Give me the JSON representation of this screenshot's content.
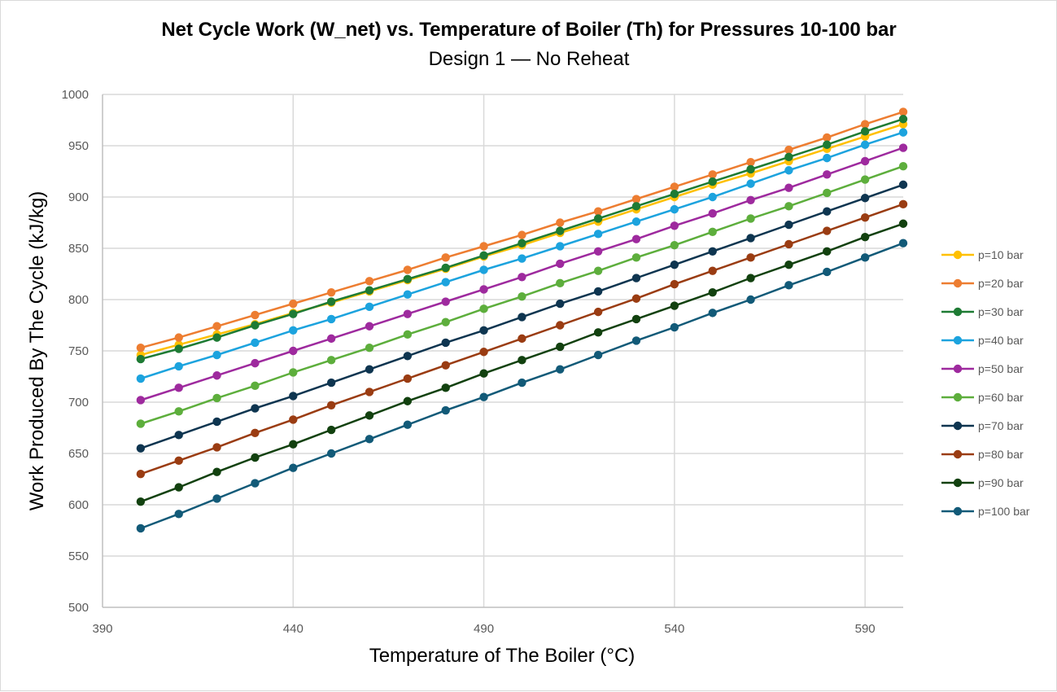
{
  "chart_data": {
    "type": "line",
    "title": "Net Cycle Work (W_net) vs. Temperature of Boiler (Th) for Pressures 10-100 bar",
    "subtitle": "Design 1 — No Reheat",
    "xlabel": "Temperature of The Boiler (°C)",
    "ylabel": "Work Produced By The Cycle (kJ/kg)",
    "xlim": [
      390,
      600
    ],
    "ylim": [
      500,
      1000
    ],
    "xticks": [
      390,
      440,
      490,
      540,
      590
    ],
    "yticks": [
      500,
      550,
      600,
      650,
      700,
      750,
      800,
      850,
      900,
      950,
      1000
    ],
    "grid": true,
    "legend_position": "right",
    "x": [
      400,
      410,
      420,
      430,
      440,
      450,
      460,
      470,
      480,
      490,
      500,
      510,
      520,
      530,
      540,
      550,
      560,
      570,
      580,
      590,
      600
    ],
    "series": [
      {
        "name": "p=10 bar",
        "color": "#FFC000",
        "values": [
          746,
          756,
          766,
          776,
          787,
          797,
          808,
          819,
          830,
          842,
          853,
          865,
          876,
          888,
          900,
          912,
          923,
          935,
          947,
          959,
          971
        ]
      },
      {
        "name": "p=20 bar",
        "color": "#ED7D31",
        "values": [
          753,
          763,
          774,
          785,
          796,
          807,
          818,
          829,
          841,
          852,
          863,
          875,
          886,
          898,
          910,
          922,
          934,
          946,
          958,
          971,
          983
        ]
      },
      {
        "name": "p=30 bar",
        "color": "#1E7B34",
        "values": [
          742,
          752,
          763,
          775,
          786,
          798,
          809,
          820,
          831,
          843,
          855,
          867,
          879,
          891,
          903,
          915,
          927,
          939,
          951,
          964,
          976
        ]
      },
      {
        "name": "p=40 bar",
        "color": "#1CA3DE",
        "values": [
          723,
          735,
          746,
          758,
          770,
          781,
          793,
          805,
          817,
          829,
          840,
          852,
          864,
          876,
          888,
          900,
          913,
          926,
          938,
          951,
          963
        ]
      },
      {
        "name": "p=50 bar",
        "color": "#9E2A9E",
        "values": [
          702,
          714,
          726,
          738,
          750,
          762,
          774,
          786,
          798,
          810,
          822,
          835,
          847,
          859,
          872,
          884,
          897,
          909,
          922,
          935,
          948
        ]
      },
      {
        "name": "p=60 bar",
        "color": "#5DAE3C",
        "values": [
          679,
          691,
          704,
          716,
          729,
          741,
          753,
          766,
          778,
          791,
          803,
          816,
          828,
          841,
          853,
          866,
          879,
          891,
          904,
          917,
          930
        ]
      },
      {
        "name": "p=70 bar",
        "color": "#0E3550",
        "values": [
          655,
          668,
          681,
          694,
          706,
          719,
          732,
          745,
          758,
          770,
          783,
          796,
          808,
          821,
          834,
          847,
          860,
          873,
          886,
          899,
          912
        ]
      },
      {
        "name": "p=80 bar",
        "color": "#9A3C12",
        "values": [
          630,
          643,
          656,
          670,
          683,
          697,
          710,
          723,
          736,
          749,
          762,
          775,
          788,
          801,
          815,
          828,
          841,
          854,
          867,
          880,
          893
        ]
      },
      {
        "name": "p=90 bar",
        "color": "#12410F",
        "values": [
          603,
          617,
          632,
          646,
          659,
          673,
          687,
          701,
          714,
          728,
          741,
          754,
          768,
          781,
          794,
          807,
          821,
          834,
          847,
          861,
          874
        ]
      },
      {
        "name": "p=100 bar",
        "color": "#125A78",
        "values": [
          577,
          591,
          606,
          621,
          636,
          650,
          664,
          678,
          692,
          705,
          719,
          732,
          746,
          760,
          773,
          787,
          800,
          814,
          827,
          841,
          855
        ]
      }
    ]
  }
}
